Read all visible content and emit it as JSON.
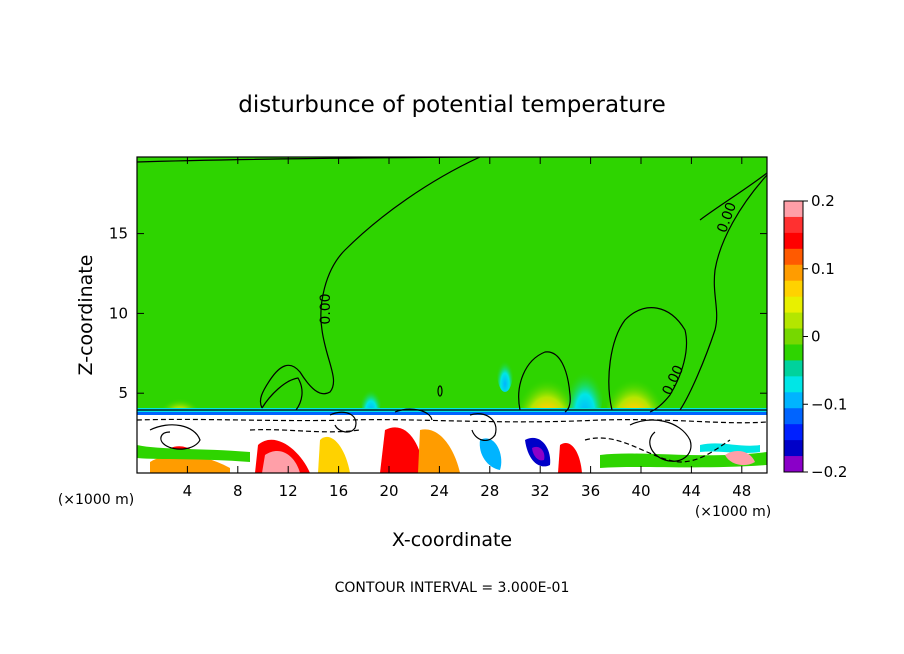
{
  "chart_data": {
    "type": "heatmap",
    "title": "disturbunce of potential temperature",
    "xlabel": "X-coordinate",
    "ylabel": "Z-coordinate",
    "x_unit": "(×1000 m)",
    "y_unit": "(×1000 m)",
    "xlim": [
      0,
      50
    ],
    "ylim": [
      0,
      19.8
    ],
    "x_ticks": [
      4,
      8,
      12,
      16,
      20,
      24,
      28,
      32,
      36,
      40,
      44,
      48
    ],
    "y_ticks": [
      5,
      10,
      15
    ],
    "colorbar": {
      "range": [
        -0.2,
        0.2
      ],
      "tick_values": [
        0.2,
        0.1,
        0,
        -0.1,
        -0.2
      ],
      "tick_labels": [
        "0.2",
        "0.1",
        "0",
        "−0.1",
        "−0.2"
      ],
      "colors": [
        "#ff9fa8",
        "#ff3030",
        "#ff0000",
        "#ff5a00",
        "#ff9c00",
        "#ffd200",
        "#e8f000",
        "#b4e600",
        "#76d800",
        "#2ed400",
        "#00d29c",
        "#00e6e6",
        "#00b4ff",
        "#0064ff",
        "#0020ff",
        "#0000c8",
        "#8a00c8"
      ]
    },
    "contour_labels": [
      "0.00",
      "0.00",
      "0.00"
    ],
    "contour_interval_label": "CONTOUR INTERVAL = 3.000E-01",
    "background_value": 0,
    "boundary_layer_top_z": 4,
    "warm_cells": [
      {
        "x": 32.6,
        "z": 4.3,
        "value": 0.1
      },
      {
        "x": 39.6,
        "z": 4.3,
        "value": 0.1
      },
      {
        "x": 3.3,
        "z": 4.3,
        "value": 0.05
      }
    ],
    "cool_cells": [
      {
        "x": 35.2,
        "z": 4.6,
        "value": -0.05
      },
      {
        "x": 18.6,
        "z": 4.4,
        "value": -0.05
      },
      {
        "x": 28.2,
        "z": 6.5,
        "value": -0.02
      }
    ]
  }
}
